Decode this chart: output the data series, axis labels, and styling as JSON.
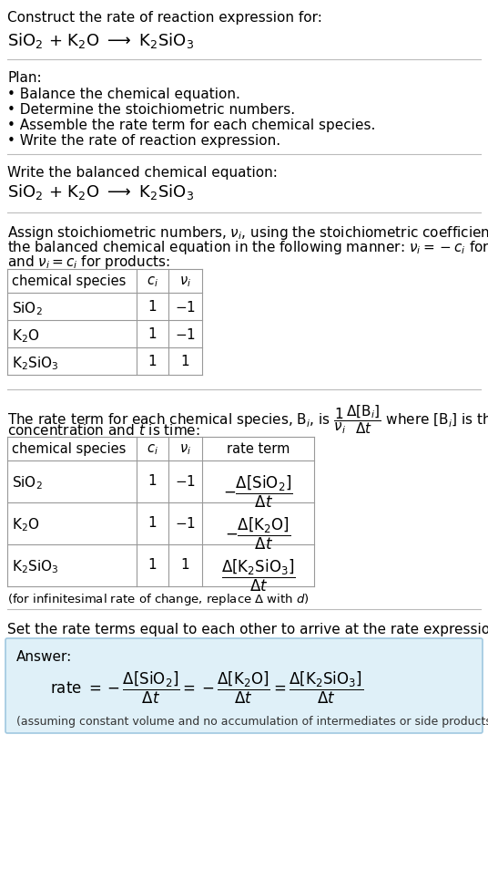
{
  "title_line": "Construct the rate of reaction expression for:",
  "reaction_equation": "SiO$_2$ + K$_2$O $\\longrightarrow$ K$_2$SiO$_3$",
  "plan_header": "Plan:",
  "plan_items": [
    "• Balance the chemical equation.",
    "• Determine the stoichiometric numbers.",
    "• Assemble the rate term for each chemical species.",
    "• Write the rate of reaction expression."
  ],
  "balanced_eq_header": "Write the balanced chemical equation:",
  "balanced_eq": "SiO$_2$ + K$_2$O $\\longrightarrow$ K$_2$SiO$_3$",
  "stoich_header_line1": "Assign stoichiometric numbers, $\\nu_i$, using the stoichiometric coefficients, $c_i$, from",
  "stoich_header_line2": "the balanced chemical equation in the following manner: $\\nu_i = -c_i$ for reactants",
  "stoich_header_line3": "and $\\nu_i = c_i$ for products:",
  "table1_headers": [
    "chemical species",
    "$c_i$",
    "$\\nu_i$"
  ],
  "table1_rows": [
    [
      "SiO$_2$",
      "1",
      "$-1$"
    ],
    [
      "K$_2$O",
      "1",
      "$-1$"
    ],
    [
      "K$_2$SiO$_3$",
      "1",
      "1"
    ]
  ],
  "rate_term_line1": "The rate term for each chemical species, B$_i$, is $\\dfrac{1}{\\nu_i}\\dfrac{\\Delta[\\mathrm{B}_i]}{\\Delta t}$ where [B$_i$] is the amount",
  "rate_term_line2": "concentration and $t$ is time:",
  "table2_headers": [
    "chemical species",
    "$c_i$",
    "$\\nu_i$",
    "rate term"
  ],
  "table2_rows": [
    [
      "SiO$_2$",
      "1",
      "$-1$",
      "$-\\dfrac{\\Delta[\\mathrm{SiO_2}]}{\\Delta t}$"
    ],
    [
      "K$_2$O",
      "1",
      "$-1$",
      "$-\\dfrac{\\Delta[\\mathrm{K_2O}]}{\\Delta t}$"
    ],
    [
      "K$_2$SiO$_3$",
      "1",
      "1",
      "$\\dfrac{\\Delta[\\mathrm{K_2SiO_3}]}{\\Delta t}$"
    ]
  ],
  "infinitesimal_note": "(for infinitesimal rate of change, replace $\\Delta$ with $d$)",
  "set_equal_header": "Set the rate terms equal to each other to arrive at the rate expression:",
  "answer_label": "Answer:",
  "answer_box_line1": "rate $= -\\dfrac{\\Delta[\\mathrm{SiO_2}]}{\\Delta t} = -\\dfrac{\\Delta[\\mathrm{K_2O}]}{\\Delta t} = \\dfrac{\\Delta[\\mathrm{K_2SiO_3}]}{\\Delta t}$",
  "answer_note": "(assuming constant volume and no accumulation of intermediates or side products)",
  "bg_color": "#ffffff",
  "text_color": "#000000",
  "table_border_color": "#999999",
  "answer_box_bg": "#dff0f8",
  "answer_box_border": "#a0c8e0",
  "separator_color": "#bbbbbb"
}
